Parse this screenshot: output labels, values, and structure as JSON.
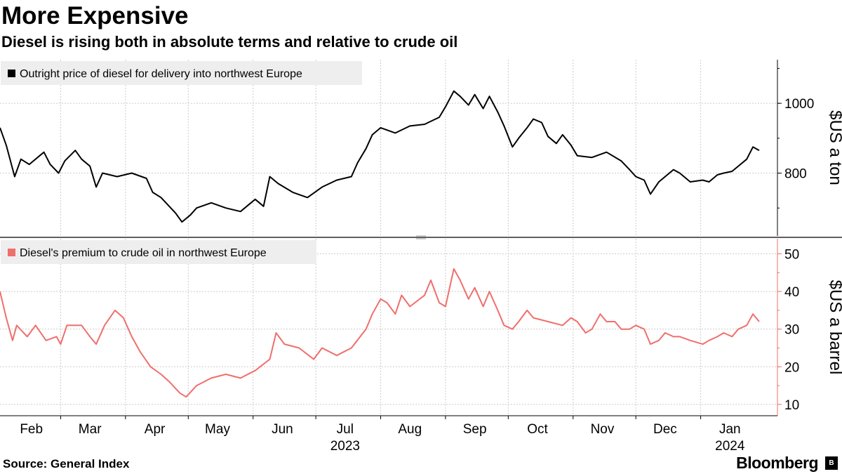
{
  "header": {
    "title": "More Expensive",
    "subtitle": "Diesel is rising both in absolute terms and relative to crude oil"
  },
  "footer": {
    "source": "Source:  General Index",
    "brand": "Bloomberg"
  },
  "colors": {
    "diesel": "#000000",
    "premium": "#ef6f6c",
    "grid": "#cccccc",
    "legend_bg": "#eeeeee"
  },
  "chart_data": [
    {
      "type": "line",
      "legend": "Outright price of diesel for delivery into northwest Europe",
      "ylabel": "$US a ton",
      "ylim": [
        620,
        1125
      ],
      "yticks": [
        800,
        1000
      ],
      "grid": true,
      "x_anchors": [
        {
          "date": "2023-01-31",
          "value": 930
        },
        {
          "date": "2023-02-03",
          "value": 880
        },
        {
          "date": "2023-02-07",
          "value": 790
        },
        {
          "date": "2023-02-10",
          "value": 840
        },
        {
          "date": "2023-02-14",
          "value": 825
        },
        {
          "date": "2023-02-21",
          "value": 860
        },
        {
          "date": "2023-02-24",
          "value": 825
        },
        {
          "date": "2023-02-28",
          "value": 800
        },
        {
          "date": "2023-03-03",
          "value": 835
        },
        {
          "date": "2023-03-08",
          "value": 865
        },
        {
          "date": "2023-03-11",
          "value": 840
        },
        {
          "date": "2023-03-15",
          "value": 820
        },
        {
          "date": "2023-03-18",
          "value": 760
        },
        {
          "date": "2023-03-21",
          "value": 800
        },
        {
          "date": "2023-03-28",
          "value": 790
        },
        {
          "date": "2023-04-04",
          "value": 800
        },
        {
          "date": "2023-04-11",
          "value": 785
        },
        {
          "date": "2023-04-14",
          "value": 745
        },
        {
          "date": "2023-04-18",
          "value": 730
        },
        {
          "date": "2023-04-25",
          "value": 685
        },
        {
          "date": "2023-04-28",
          "value": 660
        },
        {
          "date": "2023-05-02",
          "value": 680
        },
        {
          "date": "2023-05-05",
          "value": 700
        },
        {
          "date": "2023-05-12",
          "value": 715
        },
        {
          "date": "2023-05-19",
          "value": 700
        },
        {
          "date": "2023-05-26",
          "value": 690
        },
        {
          "date": "2023-06-02",
          "value": 725
        },
        {
          "date": "2023-06-06",
          "value": 705
        },
        {
          "date": "2023-06-09",
          "value": 790
        },
        {
          "date": "2023-06-13",
          "value": 770
        },
        {
          "date": "2023-06-20",
          "value": 745
        },
        {
          "date": "2023-06-27",
          "value": 730
        },
        {
          "date": "2023-07-04",
          "value": 760
        },
        {
          "date": "2023-07-11",
          "value": 780
        },
        {
          "date": "2023-07-18",
          "value": 790
        },
        {
          "date": "2023-07-21",
          "value": 830
        },
        {
          "date": "2023-07-25",
          "value": 870
        },
        {
          "date": "2023-07-28",
          "value": 910
        },
        {
          "date": "2023-08-01",
          "value": 930
        },
        {
          "date": "2023-08-08",
          "value": 915
        },
        {
          "date": "2023-08-15",
          "value": 935
        },
        {
          "date": "2023-08-22",
          "value": 940
        },
        {
          "date": "2023-08-29",
          "value": 960
        },
        {
          "date": "2023-09-01",
          "value": 990
        },
        {
          "date": "2023-09-05",
          "value": 1035
        },
        {
          "date": "2023-09-08",
          "value": 1020
        },
        {
          "date": "2023-09-12",
          "value": 995
        },
        {
          "date": "2023-09-15",
          "value": 1025
        },
        {
          "date": "2023-09-19",
          "value": 985
        },
        {
          "date": "2023-09-22",
          "value": 1020
        },
        {
          "date": "2023-09-26",
          "value": 975
        },
        {
          "date": "2023-09-29",
          "value": 935
        },
        {
          "date": "2023-10-03",
          "value": 875
        },
        {
          "date": "2023-10-06",
          "value": 900
        },
        {
          "date": "2023-10-10",
          "value": 930
        },
        {
          "date": "2023-10-13",
          "value": 955
        },
        {
          "date": "2023-10-17",
          "value": 945
        },
        {
          "date": "2023-10-20",
          "value": 905
        },
        {
          "date": "2023-10-24",
          "value": 885
        },
        {
          "date": "2023-10-27",
          "value": 910
        },
        {
          "date": "2023-10-31",
          "value": 880
        },
        {
          "date": "2023-11-03",
          "value": 850
        },
        {
          "date": "2023-11-10",
          "value": 845
        },
        {
          "date": "2023-11-17",
          "value": 860
        },
        {
          "date": "2023-11-24",
          "value": 835
        },
        {
          "date": "2023-11-28",
          "value": 810
        },
        {
          "date": "2023-12-01",
          "value": 790
        },
        {
          "date": "2023-12-05",
          "value": 780
        },
        {
          "date": "2023-12-08",
          "value": 740
        },
        {
          "date": "2023-12-12",
          "value": 775
        },
        {
          "date": "2023-12-19",
          "value": 810
        },
        {
          "date": "2023-12-22",
          "value": 800
        },
        {
          "date": "2023-12-27",
          "value": 775
        },
        {
          "date": "2024-01-02",
          "value": 780
        },
        {
          "date": "2024-01-05",
          "value": 775
        },
        {
          "date": "2024-01-09",
          "value": 795
        },
        {
          "date": "2024-01-12",
          "value": 800
        },
        {
          "date": "2024-01-16",
          "value": 805
        },
        {
          "date": "2024-01-19",
          "value": 820
        },
        {
          "date": "2024-01-23",
          "value": 840
        },
        {
          "date": "2024-01-26",
          "value": 875
        },
        {
          "date": "2024-01-29",
          "value": 865
        }
      ]
    },
    {
      "type": "line",
      "legend": "Diesel's premium to crude oil in northwest Europe",
      "ylabel": "$US a barrel",
      "ylim": [
        7,
        54
      ],
      "yticks": [
        10,
        20,
        30,
        40,
        50
      ],
      "grid": true,
      "x_anchors": [
        {
          "date": "2023-01-31",
          "value": 40
        },
        {
          "date": "2023-02-03",
          "value": 33
        },
        {
          "date": "2023-02-06",
          "value": 27
        },
        {
          "date": "2023-02-08",
          "value": 31
        },
        {
          "date": "2023-02-13",
          "value": 28
        },
        {
          "date": "2023-02-17",
          "value": 31
        },
        {
          "date": "2023-02-22",
          "value": 27
        },
        {
          "date": "2023-02-27",
          "value": 28
        },
        {
          "date": "2023-03-01",
          "value": 26
        },
        {
          "date": "2023-03-04",
          "value": 31
        },
        {
          "date": "2023-03-11",
          "value": 31
        },
        {
          "date": "2023-03-15",
          "value": 28
        },
        {
          "date": "2023-03-18",
          "value": 26
        },
        {
          "date": "2023-03-22",
          "value": 31
        },
        {
          "date": "2023-03-27",
          "value": 35
        },
        {
          "date": "2023-03-31",
          "value": 33
        },
        {
          "date": "2023-04-04",
          "value": 28
        },
        {
          "date": "2023-04-08",
          "value": 24
        },
        {
          "date": "2023-04-13",
          "value": 20
        },
        {
          "date": "2023-04-18",
          "value": 18
        },
        {
          "date": "2023-04-22",
          "value": 16
        },
        {
          "date": "2023-04-27",
          "value": 13
        },
        {
          "date": "2023-04-30",
          "value": 12
        },
        {
          "date": "2023-05-05",
          "value": 15
        },
        {
          "date": "2023-05-12",
          "value": 17
        },
        {
          "date": "2023-05-19",
          "value": 18
        },
        {
          "date": "2023-05-26",
          "value": 17
        },
        {
          "date": "2023-06-02",
          "value": 19
        },
        {
          "date": "2023-06-09",
          "value": 22
        },
        {
          "date": "2023-06-12",
          "value": 29
        },
        {
          "date": "2023-06-16",
          "value": 26
        },
        {
          "date": "2023-06-23",
          "value": 25
        },
        {
          "date": "2023-06-30",
          "value": 22
        },
        {
          "date": "2023-07-04",
          "value": 25
        },
        {
          "date": "2023-07-11",
          "value": 23
        },
        {
          "date": "2023-07-18",
          "value": 25
        },
        {
          "date": "2023-07-25",
          "value": 30
        },
        {
          "date": "2023-07-28",
          "value": 34
        },
        {
          "date": "2023-08-01",
          "value": 38
        },
        {
          "date": "2023-08-04",
          "value": 37
        },
        {
          "date": "2023-08-08",
          "value": 34
        },
        {
          "date": "2023-08-11",
          "value": 39
        },
        {
          "date": "2023-08-15",
          "value": 36
        },
        {
          "date": "2023-08-22",
          "value": 39
        },
        {
          "date": "2023-08-25",
          "value": 43
        },
        {
          "date": "2023-08-29",
          "value": 37
        },
        {
          "date": "2023-09-01",
          "value": 36
        },
        {
          "date": "2023-09-05",
          "value": 46
        },
        {
          "date": "2023-09-08",
          "value": 43
        },
        {
          "date": "2023-09-12",
          "value": 38
        },
        {
          "date": "2023-09-15",
          "value": 41
        },
        {
          "date": "2023-09-19",
          "value": 36
        },
        {
          "date": "2023-09-22",
          "value": 40
        },
        {
          "date": "2023-09-26",
          "value": 35
        },
        {
          "date": "2023-09-29",
          "value": 31
        },
        {
          "date": "2023-10-03",
          "value": 30
        },
        {
          "date": "2023-10-06",
          "value": 32
        },
        {
          "date": "2023-10-10",
          "value": 35
        },
        {
          "date": "2023-10-13",
          "value": 33
        },
        {
          "date": "2023-10-20",
          "value": 32
        },
        {
          "date": "2023-10-27",
          "value": 31
        },
        {
          "date": "2023-10-31",
          "value": 33
        },
        {
          "date": "2023-11-03",
          "value": 32
        },
        {
          "date": "2023-11-07",
          "value": 29
        },
        {
          "date": "2023-11-10",
          "value": 30
        },
        {
          "date": "2023-11-14",
          "value": 34
        },
        {
          "date": "2023-11-17",
          "value": 32
        },
        {
          "date": "2023-11-21",
          "value": 32
        },
        {
          "date": "2023-11-24",
          "value": 30
        },
        {
          "date": "2023-11-28",
          "value": 30
        },
        {
          "date": "2023-12-01",
          "value": 31
        },
        {
          "date": "2023-12-05",
          "value": 30
        },
        {
          "date": "2023-12-08",
          "value": 26
        },
        {
          "date": "2023-12-12",
          "value": 27
        },
        {
          "date": "2023-12-15",
          "value": 29
        },
        {
          "date": "2023-12-19",
          "value": 28
        },
        {
          "date": "2023-12-22",
          "value": 28
        },
        {
          "date": "2023-12-27",
          "value": 27
        },
        {
          "date": "2024-01-02",
          "value": 26
        },
        {
          "date": "2024-01-05",
          "value": 27
        },
        {
          "date": "2024-01-09",
          "value": 28
        },
        {
          "date": "2024-01-12",
          "value": 29
        },
        {
          "date": "2024-01-16",
          "value": 28
        },
        {
          "date": "2024-01-19",
          "value": 30
        },
        {
          "date": "2024-01-23",
          "value": 31
        },
        {
          "date": "2024-01-26",
          "value": 34
        },
        {
          "date": "2024-01-29",
          "value": 32
        }
      ]
    }
  ],
  "x_axis": {
    "start": "2023-01-31",
    "end": "2024-01-31",
    "months": [
      {
        "label": "Feb",
        "date": "2023-02-15"
      },
      {
        "label": "Mar",
        "date": "2023-03-15"
      },
      {
        "label": "Apr",
        "date": "2023-04-15"
      },
      {
        "label": "May",
        "date": "2023-05-15"
      },
      {
        "label": "Jun",
        "date": "2023-06-15"
      },
      {
        "label": "Jul",
        "date": "2023-07-15"
      },
      {
        "label": "Aug",
        "date": "2023-08-15"
      },
      {
        "label": "Sep",
        "date": "2023-09-15"
      },
      {
        "label": "Oct",
        "date": "2023-10-15"
      },
      {
        "label": "Nov",
        "date": "2023-11-15"
      },
      {
        "label": "Dec",
        "date": "2023-12-15"
      },
      {
        "label": "Jan",
        "date": "2024-01-15"
      }
    ],
    "boundaries": [
      "2023-03-01",
      "2023-04-01",
      "2023-05-01",
      "2023-06-01",
      "2023-07-01",
      "2023-08-01",
      "2023-09-01",
      "2023-10-01",
      "2023-11-01",
      "2023-12-01",
      "2024-01-01"
    ],
    "years": [
      {
        "label": "2023",
        "date": "2023-07-15"
      },
      {
        "label": "2024",
        "date": "2024-01-15"
      }
    ]
  }
}
